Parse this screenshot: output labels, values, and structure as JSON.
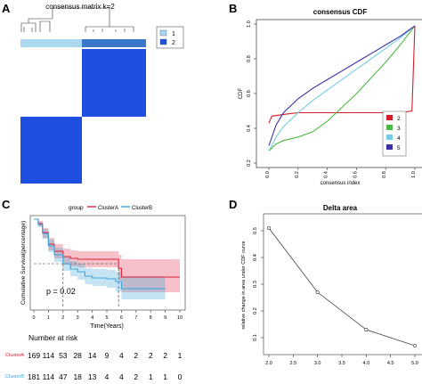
{
  "panels": {
    "A": {
      "letter": "A",
      "title": "consensus matrix k=2",
      "legend": [
        "1",
        "2"
      ],
      "colors": {
        "dark": "#1f4fe0",
        "light": "#a9d8ef"
      }
    },
    "B": {
      "letter": "B",
      "title": "consensus CDF",
      "xlabel": "consensus index",
      "ylabel": "CDF",
      "legend": [
        "2",
        "3",
        "4",
        "5"
      ],
      "colors": [
        "#d11e2a",
        "#4fb845",
        "#74cde3",
        "#3b2fa3"
      ]
    },
    "C": {
      "letter": "C",
      "group_label": "group",
      "legend": [
        "ClusterA",
        "ClusterB"
      ],
      "colors": [
        "#e0213a",
        "#3aa7dc"
      ],
      "xlabel": "Time(Years)",
      "ylabel": "Cumulative Survival(percentage)",
      "pvalue": "p = 0.02",
      "risk_title": "Number at risk",
      "risk_rows": [
        {
          "name": "ClusterA",
          "values": [
            "169",
            "114",
            "53",
            "28",
            "14",
            "9",
            "4",
            "2",
            "2",
            "2",
            "1"
          ]
        },
        {
          "name": "ClusterB",
          "values": [
            "181",
            "114",
            "47",
            "18",
            "13",
            "4",
            "4",
            "2",
            "1",
            "1",
            "0"
          ]
        }
      ]
    },
    "D": {
      "letter": "D",
      "title": "Delta area",
      "ylabel": "relative change in area under CDF curve"
    }
  },
  "chart_data": [
    {
      "type": "heatmap",
      "title": "consensus matrix k=2",
      "clusters": [
        "1",
        "2"
      ],
      "blocks": [
        [
          0,
          1
        ],
        [
          1,
          0
        ]
      ]
    },
    {
      "type": "line",
      "title": "consensus CDF",
      "xlabel": "consensus index",
      "ylabel": "CDF",
      "xlim": [
        0,
        1
      ],
      "ylim": [
        0.2,
        1.0
      ],
      "x_ticks": [
        "0.0",
        "0.2",
        "0.4",
        "0.6",
        "0.8",
        "1.0"
      ],
      "y_ticks": [
        "0.2",
        "0.4",
        "0.6",
        "0.8",
        "1.0"
      ],
      "legend_position": "bottom-right",
      "series": [
        {
          "name": "2",
          "x": [
            0,
            0.02,
            0.1,
            0.2,
            0.3,
            0.5,
            0.7,
            0.9,
            0.98,
            1.0
          ],
          "y": [
            0.43,
            0.47,
            0.48,
            0.49,
            0.49,
            0.49,
            0.49,
            0.49,
            0.5,
            0.99
          ]
        },
        {
          "name": "3",
          "x": [
            0,
            0.05,
            0.1,
            0.2,
            0.3,
            0.4,
            0.5,
            0.6,
            0.7,
            0.8,
            0.9,
            1.0
          ],
          "y": [
            0.27,
            0.31,
            0.33,
            0.35,
            0.38,
            0.44,
            0.52,
            0.6,
            0.69,
            0.78,
            0.88,
            0.99
          ]
        },
        {
          "name": "4",
          "x": [
            0,
            0.05,
            0.1,
            0.2,
            0.3,
            0.4,
            0.5,
            0.6,
            0.7,
            0.8,
            0.9,
            1.0
          ],
          "y": [
            0.27,
            0.35,
            0.41,
            0.49,
            0.56,
            0.62,
            0.68,
            0.74,
            0.8,
            0.86,
            0.92,
            0.99
          ]
        },
        {
          "name": "5",
          "x": [
            0,
            0.05,
            0.1,
            0.2,
            0.3,
            0.4,
            0.5,
            0.6,
            0.7,
            0.8,
            0.9,
            1.0
          ],
          "y": [
            0.3,
            0.42,
            0.49,
            0.57,
            0.63,
            0.68,
            0.73,
            0.78,
            0.83,
            0.88,
            0.93,
            0.99
          ]
        }
      ]
    },
    {
      "type": "line",
      "title": "",
      "xlabel": "Time(Years)",
      "ylabel": "Cumulative Survival(percentage)",
      "xlim": [
        0,
        10
      ],
      "ylim": [
        0,
        100
      ],
      "x_ticks": [
        "0",
        "1",
        "2",
        "3",
        "4",
        "5",
        "6",
        "7",
        "8",
        "9",
        "10"
      ],
      "y_ticks": [
        "0",
        "25",
        "50",
        "75",
        "100"
      ],
      "annotation": "p = 0.02",
      "median_reference": 50,
      "median_times": [
        2.0,
        5.8
      ],
      "series": [
        {
          "name": "ClusterA",
          "x": [
            0,
            0.3,
            0.6,
            1.0,
            1.4,
            2.0,
            2.5,
            3.0,
            4.0,
            5.0,
            5.8,
            6.0,
            10.0
          ],
          "y": [
            100,
            95,
            85,
            72,
            64,
            58,
            56,
            55,
            55,
            55,
            45,
            35,
            35
          ],
          "ci_upper": [
            100,
            98,
            90,
            79,
            72,
            67,
            65,
            64,
            64,
            64,
            60,
            55,
            55
          ],
          "ci_lower": [
            100,
            92,
            79,
            65,
            56,
            49,
            47,
            46,
            46,
            46,
            31,
            18,
            18
          ]
        },
        {
          "name": "ClusterB",
          "x": [
            0,
            0.3,
            0.6,
            1.0,
            1.4,
            2.0,
            2.5,
            3.0,
            3.5,
            4.0,
            5.0,
            5.6,
            6.0,
            9.0
          ],
          "y": [
            100,
            94,
            84,
            70,
            60,
            50,
            44,
            41,
            36,
            34,
            33,
            30,
            22,
            22
          ],
          "ci_upper": [
            100,
            97,
            89,
            77,
            68,
            58,
            53,
            50,
            45,
            44,
            43,
            41,
            36,
            36
          ],
          "ci_lower": [
            100,
            91,
            78,
            63,
            52,
            42,
            36,
            32,
            27,
            25,
            23,
            19,
            10,
            10
          ]
        }
      ]
    },
    {
      "type": "line",
      "title": "Delta area",
      "xlabel": "",
      "ylabel": "relative change in area under CDF curve",
      "x": [
        2,
        3,
        4,
        5
      ],
      "y": [
        0.51,
        0.27,
        0.13,
        0.07
      ],
      "xlim": [
        2,
        5
      ],
      "ylim": [
        0.05,
        0.55
      ],
      "x_ticks": [
        "2.0",
        "2.5",
        "3.0",
        "3.5",
        "4.0",
        "4.5",
        "5.0"
      ],
      "y_ticks": [
        "0.1",
        "0.2",
        "0.3",
        "0.4",
        "0.5"
      ]
    }
  ]
}
